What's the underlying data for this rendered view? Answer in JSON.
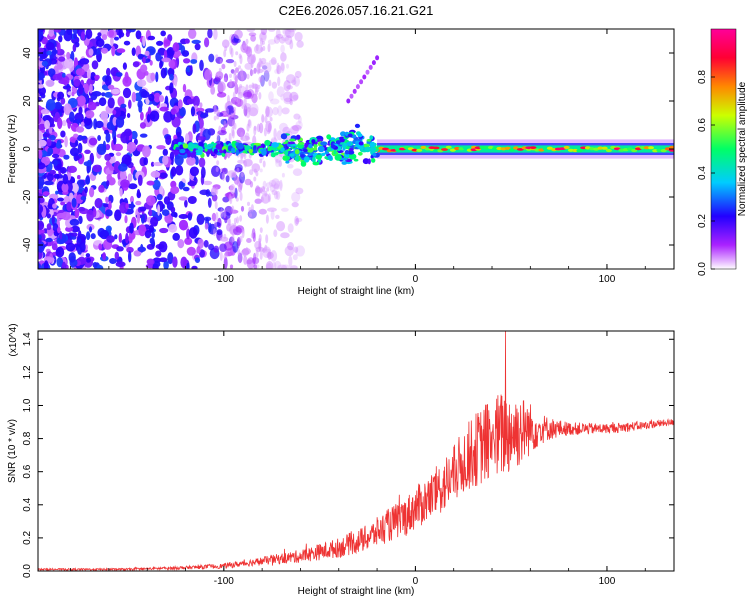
{
  "title": "C2E6.2026.057.16.21.G21",
  "chart_data": [
    {
      "type": "heatmap",
      "title": "C2E6.2026.057.16.21.G21",
      "xlabel": "Height of straight line (km)",
      "ylabel": "Frequency (Hz)",
      "xlim": [
        -197,
        135
      ],
      "ylim": [
        -50,
        50
      ],
      "xticks": [
        -100,
        0,
        100
      ],
      "yticks": [
        -40,
        -20,
        0,
        20,
        40
      ],
      "xtick_labels": [
        "-100",
        "0",
        "100"
      ],
      "ytick_labels": [
        "-40",
        "-20",
        "0",
        "20",
        "40"
      ],
      "colorbar": {
        "label": "Normalized spectral amplitude",
        "range": [
          0,
          1
        ],
        "ticks": [
          0.0,
          0.2,
          0.4,
          0.6,
          0.8
        ],
        "tick_labels": [
          "0.0",
          "0.2",
          "0.4",
          "0.6",
          "0.8"
        ],
        "colors": [
          "#ffffff",
          "#cc33ff",
          "#2200ff",
          "#00ccff",
          "#00ff66",
          "#ccff00",
          "#ff8800",
          "#ff0033",
          "#ff0099"
        ]
      },
      "features": {
        "noise_region_x": [
          -197,
          -80
        ],
        "signal_start_x": -125,
        "burst_x": [
          -45,
          -28
        ],
        "burst_peak_freq": 12,
        "chirp_tail": {
          "x": [
            -35,
            -20
          ],
          "freq": [
            20,
            38
          ]
        },
        "steady_band_x": [
          -20,
          135
        ],
        "steady_band_freq": 0
      }
    },
    {
      "type": "line",
      "title": "",
      "xlabel": "Height of straight line (km)",
      "ylabel": "SNR (10 * v/v)",
      "yexponent": "(x10^4)",
      "xlim": [
        -197,
        135
      ],
      "ylim": [
        0,
        1.45
      ],
      "xticks": [
        -100,
        0,
        100
      ],
      "yticks": [
        0.0,
        0.2,
        0.4,
        0.6,
        0.8,
        1.0,
        1.2,
        1.4
      ],
      "xtick_labels": [
        "-100",
        "0",
        "100"
      ],
      "ytick_labels": [
        "0.0",
        "0.2",
        "0.4",
        "0.6",
        "0.8",
        "1.0",
        "1.2",
        "1.4"
      ],
      "color": "#ee3333",
      "series": [
        {
          "name": "SNR",
          "x": [
            -197,
            -150,
            -120,
            -100,
            -80,
            -60,
            -40,
            -25,
            -15,
            -5,
            0,
            5,
            10,
            15,
            20,
            25,
            30,
            35,
            40,
            45,
            50,
            55,
            60,
            65,
            70,
            80,
            90,
            100,
            110,
            120,
            135
          ],
          "y": [
            0.01,
            0.01,
            0.02,
            0.03,
            0.06,
            0.09,
            0.14,
            0.2,
            0.27,
            0.33,
            0.38,
            0.42,
            0.47,
            0.52,
            0.58,
            0.66,
            0.72,
            0.76,
            0.8,
            0.82,
            0.84,
            0.85,
            0.86,
            0.86,
            0.86,
            0.86,
            0.86,
            0.86,
            0.87,
            0.88,
            0.9
          ],
          "noise_amplitude": [
            0.005,
            0.006,
            0.01,
            0.015,
            0.025,
            0.04,
            0.06,
            0.08,
            0.1,
            0.12,
            0.13,
            0.14,
            0.15,
            0.17,
            0.18,
            0.2,
            0.22,
            0.24,
            0.26,
            0.27,
            0.26,
            0.22,
            0.16,
            0.1,
            0.07,
            0.04,
            0.035,
            0.03,
            0.03,
            0.025,
            0.02
          ]
        }
      ],
      "peak": {
        "x": 47,
        "y": 1.45
      }
    }
  ]
}
